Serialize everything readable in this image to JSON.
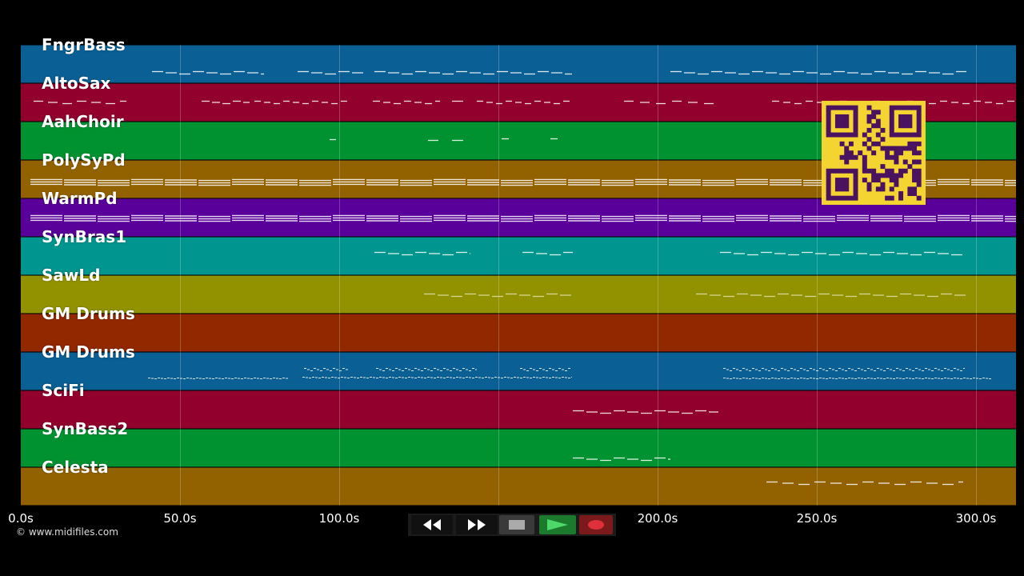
{
  "tracks": [
    {
      "name": "FngrBass",
      "color": "#0a5f95"
    },
    {
      "name": "AltoSax",
      "color": "#92002e"
    },
    {
      "name": "AahChoir",
      "color": "#009230"
    },
    {
      "name": "PolySyPd",
      "color": "#936200"
    },
    {
      "name": "WarmPd",
      "color": "#5a009a"
    },
    {
      "name": "SynBras1",
      "color": "#00958f"
    },
    {
      "name": "SawLd",
      "color": "#929200"
    },
    {
      "name": "GM Drums",
      "color": "#922800"
    },
    {
      "name": "GM Drums",
      "color": "#0a5f95"
    },
    {
      "name": "SciFi",
      "color": "#92002e"
    },
    {
      "name": "SynBass2",
      "color": "#009230"
    },
    {
      "name": "Celesta",
      "color": "#936200"
    }
  ],
  "time_axis": {
    "ticks": [
      "0.0s",
      "50.0s",
      "100.0s",
      "150.0s",
      "200.0s",
      "250.0s",
      "300.0s"
    ]
  },
  "copyright": "© www.midifiles.com",
  "transport": {
    "rewind_icon": "rewind-icon",
    "forward_icon": "fast-forward-icon",
    "stop_icon": "stop-icon",
    "play_icon": "play-icon",
    "record_icon": "record-icon"
  },
  "colors": {
    "qr_background": "#f3d431",
    "qr_modules": "#4a1360",
    "play_button": "#1c7a2c",
    "record_button": "#7a1a1a"
  }
}
